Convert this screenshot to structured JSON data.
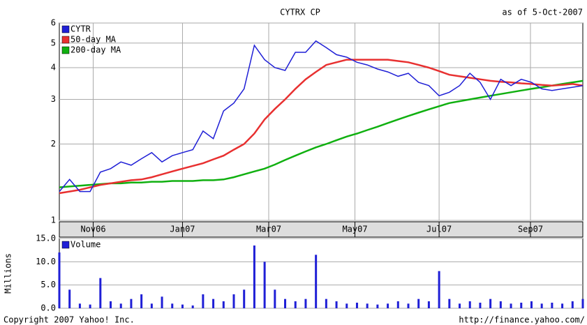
{
  "chart_data": [
    {
      "type": "line",
      "title": "CYTRX CP",
      "subtitle": "as of  5-Oct-2007",
      "log": true,
      "grid": true,
      "legend": "top-left",
      "ylim": [
        1,
        6
      ],
      "yticks": [
        1,
        2,
        3,
        4,
        5,
        6
      ],
      "xlim": [
        0,
        51
      ],
      "xticks": [
        {
          "value": 3.3,
          "label": "Nov06"
        },
        {
          "value": 12,
          "label": "Jan07"
        },
        {
          "value": 20.4,
          "label": "Mar07"
        },
        {
          "value": 28.8,
          "label": "May07"
        },
        {
          "value": 37,
          "label": "Jul07"
        },
        {
          "value": 45.9,
          "label": "Sep07"
        }
      ],
      "series": [
        {
          "name": "CYTR",
          "color": "#1f1fd6",
          "values": [
            1.3,
            1.45,
            1.3,
            1.3,
            1.55,
            1.6,
            1.7,
            1.65,
            1.75,
            1.85,
            1.7,
            1.8,
            1.85,
            1.9,
            2.25,
            2.1,
            2.7,
            2.9,
            3.3,
            4.9,
            4.3,
            4.0,
            3.9,
            4.6,
            4.6,
            5.1,
            4.8,
            4.5,
            4.4,
            4.2,
            4.1,
            3.95,
            3.85,
            3.7,
            3.8,
            3.5,
            3.4,
            3.1,
            3.2,
            3.4,
            3.8,
            3.5,
            3.0,
            3.6,
            3.4,
            3.6,
            3.5,
            3.3,
            3.25,
            3.3,
            3.35,
            3.4
          ]
        },
        {
          "name": "50-day MA",
          "color": "#e83030",
          "values": [
            1.28,
            1.3,
            1.32,
            1.35,
            1.38,
            1.4,
            1.42,
            1.44,
            1.45,
            1.48,
            1.52,
            1.56,
            1.6,
            1.64,
            1.68,
            1.74,
            1.8,
            1.9,
            2.0,
            2.2,
            2.5,
            2.75,
            3.0,
            3.3,
            3.6,
            3.85,
            4.1,
            4.2,
            4.3,
            4.3,
            4.3,
            4.3,
            4.3,
            4.25,
            4.2,
            4.1,
            4.0,
            3.88,
            3.75,
            3.7,
            3.65,
            3.6,
            3.55,
            3.52,
            3.5,
            3.47,
            3.45,
            3.42,
            3.4,
            3.42,
            3.45,
            3.4
          ]
        },
        {
          "name": "200-day MA",
          "color": "#10b010",
          "values": [
            1.35,
            1.36,
            1.37,
            1.38,
            1.39,
            1.4,
            1.4,
            1.41,
            1.41,
            1.42,
            1.42,
            1.43,
            1.43,
            1.43,
            1.44,
            1.44,
            1.45,
            1.48,
            1.52,
            1.56,
            1.6,
            1.66,
            1.73,
            1.8,
            1.87,
            1.94,
            2.0,
            2.07,
            2.14,
            2.2,
            2.27,
            2.34,
            2.42,
            2.5,
            2.58,
            2.66,
            2.74,
            2.82,
            2.9,
            2.95,
            3.0,
            3.05,
            3.1,
            3.15,
            3.2,
            3.25,
            3.3,
            3.35,
            3.4,
            3.45,
            3.5,
            3.55
          ]
        }
      ]
    },
    {
      "type": "bar",
      "ylabel": "Millions",
      "grid": true,
      "legend": "top-left",
      "xlim": [
        0,
        51
      ],
      "ylim": [
        0,
        15
      ],
      "yticks": [
        {
          "value": 0,
          "label": "0.0"
        },
        {
          "value": 5,
          "label": "5.0"
        },
        {
          "value": 10,
          "label": "10.0"
        },
        {
          "value": 15,
          "label": "15.0"
        }
      ],
      "series": [
        {
          "name": "Volume",
          "color": "#1f1fd6",
          "values": [
            12,
            4,
            1,
            0.8,
            6.5,
            1.5,
            1,
            2,
            3,
            1,
            2.5,
            1,
            0.8,
            0.6,
            3,
            2,
            1.5,
            3,
            4,
            13.5,
            10,
            4,
            2,
            1.5,
            2,
            11.5,
            2,
            1.5,
            1,
            1.2,
            1,
            0.8,
            1,
            1.5,
            1,
            2,
            1.5,
            8,
            2,
            1,
            1.5,
            1.2,
            2,
            1.5,
            1,
            1.2,
            1.5,
            1,
            1.2,
            1,
            1.5,
            2
          ]
        }
      ]
    }
  ]
}
